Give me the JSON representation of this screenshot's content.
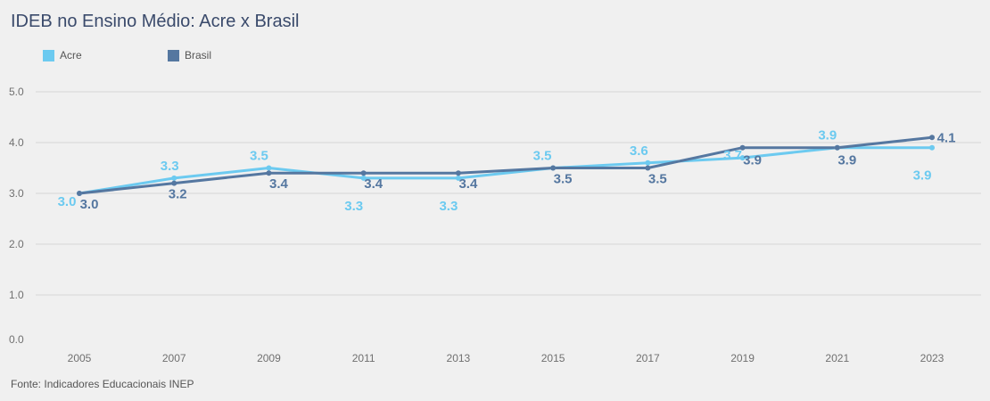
{
  "title": "IDEB no Ensino Médio: Acre x Brasil",
  "source": "Fonte: Indicadores Educacionais INEP",
  "chart_data": {
    "type": "line",
    "title": "IDEB no Ensino Médio: Acre x Brasil",
    "xlabel": "",
    "ylabel": "",
    "x": [
      "2005",
      "2007",
      "2009",
      "2011",
      "2013",
      "2015",
      "2017",
      "2019",
      "2021",
      "2023"
    ],
    "ylim": [
      0,
      5
    ],
    "y_ticks": [
      "0.0",
      "1.0",
      "2.0",
      "3.0",
      "4.0",
      "5.0"
    ],
    "grid": true,
    "legend_position": "top-left",
    "series": [
      {
        "name": "Acre",
        "color": "#6ccaf0",
        "values": [
          3.0,
          3.3,
          3.5,
          3.3,
          3.3,
          3.5,
          3.6,
          3.7,
          3.9,
          3.9
        ],
        "labels": [
          "3.0",
          "3.3",
          "3.5",
          "3.3",
          "3.3",
          "3.5",
          "3.6",
          "3.7",
          "3.9",
          "3.9"
        ]
      },
      {
        "name": "Brasil",
        "color": "#5577a0",
        "values": [
          3.0,
          3.2,
          3.4,
          3.4,
          3.4,
          3.5,
          3.5,
          3.9,
          3.9,
          4.1
        ],
        "labels": [
          "3.0",
          "3.2",
          "3.4",
          "3.4",
          "3.4",
          "3.5",
          "3.5",
          "3.9",
          "3.9",
          "4.1"
        ]
      }
    ]
  }
}
